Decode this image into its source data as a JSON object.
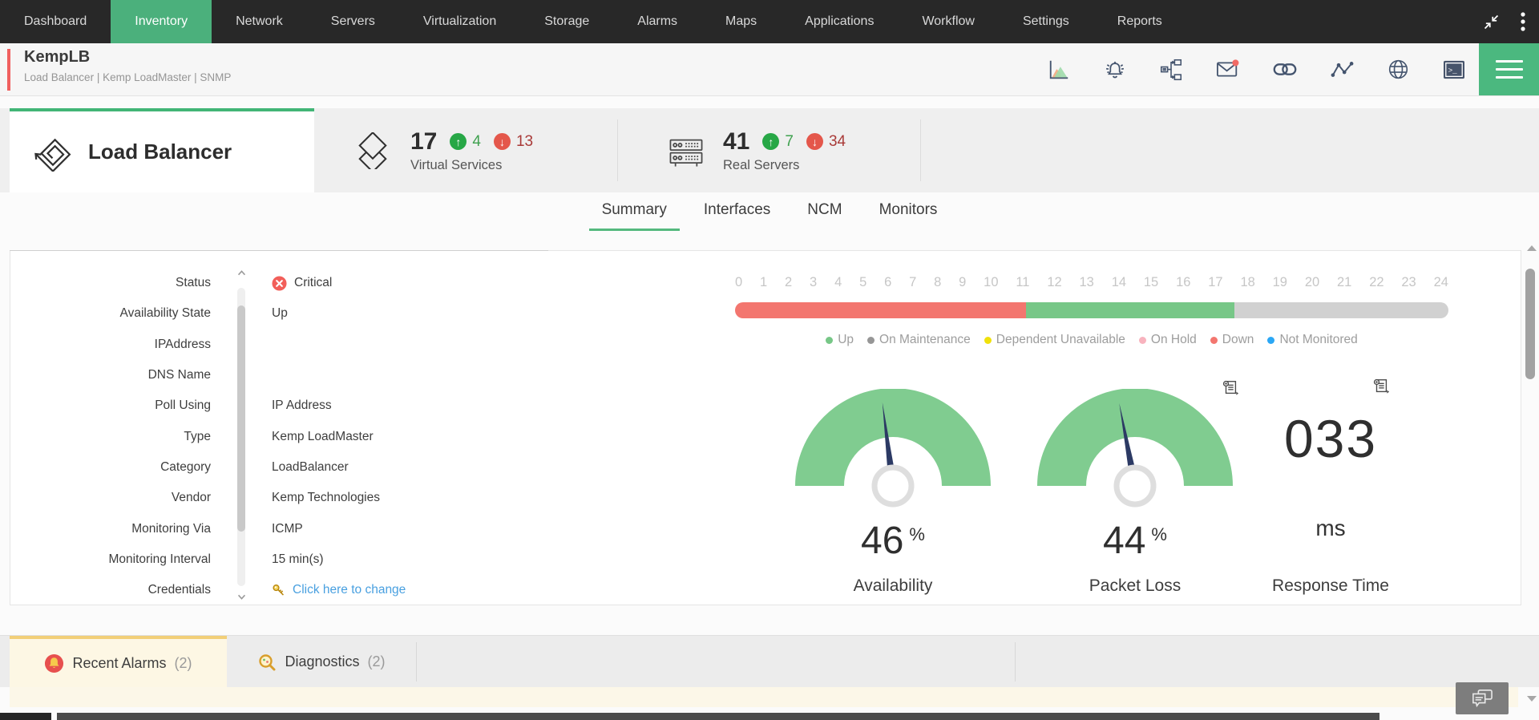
{
  "nav": {
    "items": [
      "Dashboard",
      "Inventory",
      "Network",
      "Servers",
      "Virtualization",
      "Storage",
      "Alarms",
      "Maps",
      "Applications",
      "Workflow",
      "Settings",
      "Reports"
    ],
    "active_item": "Inventory"
  },
  "window_controls": {
    "icons": [
      "collapse-arrows-icon",
      "kebab-menu-icon"
    ]
  },
  "device_header": {
    "name": "KempLB",
    "subtitle": "Load Balancer | Kemp LoadMaster  | SNMP",
    "accent_color": "#f0605f",
    "action_icons": [
      "performance-chart-icon",
      "alarm-bell-icon",
      "workflow-icon",
      "mail-icon",
      "dependency-link-icon",
      "traceroute-icon",
      "web-globe-icon",
      "terminal-icon"
    ],
    "mail_badge_color": "#f26b66",
    "menu_icon": "hamburger-icon"
  },
  "lb_section": {
    "title": "Load Balancer",
    "virtual_services": {
      "count": "17",
      "up_count": "4",
      "down_count": "13",
      "label": "Virtual Services"
    },
    "real_servers": {
      "count": "41",
      "up_count": "7",
      "down_count": "34",
      "label": "Real Servers"
    }
  },
  "tabs": {
    "items": [
      "Summary",
      "Interfaces",
      "NCM",
      "Monitors"
    ],
    "active": "Summary"
  },
  "details": {
    "rows": [
      {
        "label": "Status",
        "value": "Critical",
        "type": "critical"
      },
      {
        "label": "Availability State",
        "value": "Up",
        "type": "text"
      },
      {
        "label": "IPAddress",
        "value": "",
        "type": "text"
      },
      {
        "label": "DNS Name",
        "value": "",
        "type": "text"
      },
      {
        "label": "Poll Using",
        "value": "IP Address",
        "type": "text"
      },
      {
        "label": "Type",
        "value": "Kemp LoadMaster",
        "type": "text"
      },
      {
        "label": "Category",
        "value": "LoadBalancer",
        "type": "text"
      },
      {
        "label": "Vendor",
        "value": "Kemp Technologies",
        "type": "text"
      },
      {
        "label": "Monitoring Via",
        "value": "ICMP",
        "type": "text"
      },
      {
        "label": "Monitoring Interval",
        "value": "15 min(s)",
        "type": "text"
      },
      {
        "label": "Credentials",
        "value": "Click here to change",
        "type": "link"
      }
    ]
  },
  "chart_data": [
    {
      "type": "bar",
      "subtype": "availability-timeline-24h",
      "x_ticks": [
        "0",
        "1",
        "2",
        "3",
        "4",
        "5",
        "6",
        "7",
        "8",
        "9",
        "10",
        "11",
        "12",
        "13",
        "14",
        "15",
        "16",
        "17",
        "18",
        "19",
        "20",
        "21",
        "22",
        "23",
        "24"
      ],
      "xlim": [
        0,
        24
      ],
      "segments": [
        {
          "state": "Down",
          "from_hour": 0,
          "to_hour": 9.8,
          "color": "#f3766f"
        },
        {
          "state": "Up",
          "from_hour": 9.8,
          "to_hour": 16.8,
          "color": "#77c787"
        },
        {
          "state": "NoData",
          "from_hour": 16.8,
          "to_hour": 24,
          "color": "#d1d1d1"
        }
      ],
      "legend": [
        {
          "label": "Up",
          "color": "#77c787"
        },
        {
          "label": "On Maintenance",
          "color": "#969696"
        },
        {
          "label": "Dependent Unavailable",
          "color": "#f0e10b"
        },
        {
          "label": "On Hold",
          "color": "#f8b3be"
        },
        {
          "label": "Down",
          "color": "#f3766f"
        },
        {
          "label": "Not Monitored",
          "color": "#2ba7f5"
        }
      ],
      "legend_position": "bottom"
    },
    {
      "type": "gauge",
      "label": "Availability",
      "value": "46",
      "unit": "%",
      "percent": 46,
      "min": 0,
      "max": 100,
      "arc_color": "#80cc90"
    },
    {
      "type": "gauge",
      "label": "Packet Loss",
      "value": "44",
      "unit": "%",
      "percent": 44,
      "min": 0,
      "max": 100,
      "arc_color": "#80cc90"
    },
    {
      "type": "value",
      "label": "Response Time",
      "value": "033",
      "unit": "ms"
    }
  ],
  "bottom_tabs": {
    "items": [
      {
        "label": "Recent Alarms",
        "count": "(2)",
        "icon": "alarm-bell-red-icon",
        "active": true
      },
      {
        "label": "Diagnostics",
        "count": "(2)",
        "icon": "diagnostics-magnifier-icon",
        "active": false
      }
    ]
  },
  "misc_icons": [
    "report-icon",
    "chat-feedback-icon",
    "scroll-up-icon",
    "scroll-down-icon"
  ],
  "colors": {
    "nav_bg": "#282828",
    "accent_green": "#4bb07c",
    "strip_bg": "#efefef",
    "critical_red": "#f25f5a",
    "link_blue": "#49a0e0",
    "gauge_green": "#80cc90",
    "needle_navy": "#2c3a64",
    "active_bottom_tab_bg": "#fdf7e4",
    "bottom_tab_border": "#f2cf78"
  }
}
